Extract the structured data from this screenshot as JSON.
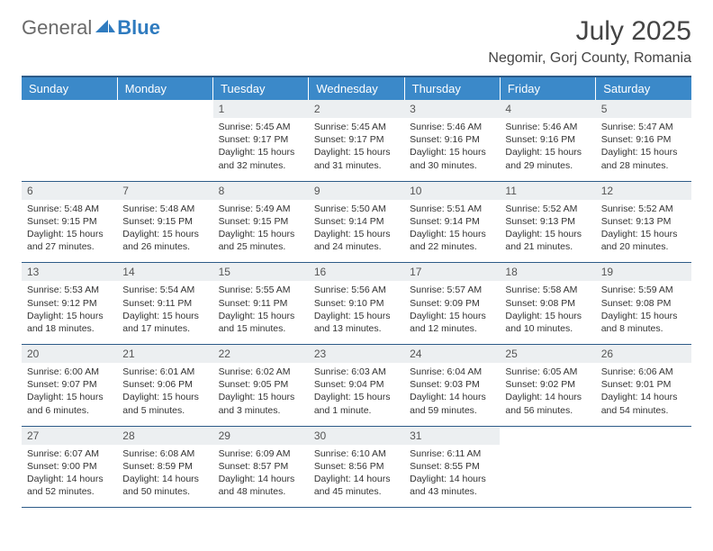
{
  "brand": {
    "general": "General",
    "blue": "Blue"
  },
  "title": "July 2025",
  "location": "Negomir, Gorj County, Romania",
  "colors": {
    "header_bg": "#3b89c9",
    "header_text": "#ffffff",
    "daynum_bg": "#eceff1",
    "border": "#2d5b88",
    "text": "#333333"
  },
  "weekdays": [
    "Sunday",
    "Monday",
    "Tuesday",
    "Wednesday",
    "Thursday",
    "Friday",
    "Saturday"
  ],
  "weeks": [
    [
      {
        "n": "",
        "sr": "",
        "ss": "",
        "dl": ""
      },
      {
        "n": "",
        "sr": "",
        "ss": "",
        "dl": ""
      },
      {
        "n": "1",
        "sr": "Sunrise: 5:45 AM",
        "ss": "Sunset: 9:17 PM",
        "dl": "Daylight: 15 hours and 32 minutes."
      },
      {
        "n": "2",
        "sr": "Sunrise: 5:45 AM",
        "ss": "Sunset: 9:17 PM",
        "dl": "Daylight: 15 hours and 31 minutes."
      },
      {
        "n": "3",
        "sr": "Sunrise: 5:46 AM",
        "ss": "Sunset: 9:16 PM",
        "dl": "Daylight: 15 hours and 30 minutes."
      },
      {
        "n": "4",
        "sr": "Sunrise: 5:46 AM",
        "ss": "Sunset: 9:16 PM",
        "dl": "Daylight: 15 hours and 29 minutes."
      },
      {
        "n": "5",
        "sr": "Sunrise: 5:47 AM",
        "ss": "Sunset: 9:16 PM",
        "dl": "Daylight: 15 hours and 28 minutes."
      }
    ],
    [
      {
        "n": "6",
        "sr": "Sunrise: 5:48 AM",
        "ss": "Sunset: 9:15 PM",
        "dl": "Daylight: 15 hours and 27 minutes."
      },
      {
        "n": "7",
        "sr": "Sunrise: 5:48 AM",
        "ss": "Sunset: 9:15 PM",
        "dl": "Daylight: 15 hours and 26 minutes."
      },
      {
        "n": "8",
        "sr": "Sunrise: 5:49 AM",
        "ss": "Sunset: 9:15 PM",
        "dl": "Daylight: 15 hours and 25 minutes."
      },
      {
        "n": "9",
        "sr": "Sunrise: 5:50 AM",
        "ss": "Sunset: 9:14 PM",
        "dl": "Daylight: 15 hours and 24 minutes."
      },
      {
        "n": "10",
        "sr": "Sunrise: 5:51 AM",
        "ss": "Sunset: 9:14 PM",
        "dl": "Daylight: 15 hours and 22 minutes."
      },
      {
        "n": "11",
        "sr": "Sunrise: 5:52 AM",
        "ss": "Sunset: 9:13 PM",
        "dl": "Daylight: 15 hours and 21 minutes."
      },
      {
        "n": "12",
        "sr": "Sunrise: 5:52 AM",
        "ss": "Sunset: 9:13 PM",
        "dl": "Daylight: 15 hours and 20 minutes."
      }
    ],
    [
      {
        "n": "13",
        "sr": "Sunrise: 5:53 AM",
        "ss": "Sunset: 9:12 PM",
        "dl": "Daylight: 15 hours and 18 minutes."
      },
      {
        "n": "14",
        "sr": "Sunrise: 5:54 AM",
        "ss": "Sunset: 9:11 PM",
        "dl": "Daylight: 15 hours and 17 minutes."
      },
      {
        "n": "15",
        "sr": "Sunrise: 5:55 AM",
        "ss": "Sunset: 9:11 PM",
        "dl": "Daylight: 15 hours and 15 minutes."
      },
      {
        "n": "16",
        "sr": "Sunrise: 5:56 AM",
        "ss": "Sunset: 9:10 PM",
        "dl": "Daylight: 15 hours and 13 minutes."
      },
      {
        "n": "17",
        "sr": "Sunrise: 5:57 AM",
        "ss": "Sunset: 9:09 PM",
        "dl": "Daylight: 15 hours and 12 minutes."
      },
      {
        "n": "18",
        "sr": "Sunrise: 5:58 AM",
        "ss": "Sunset: 9:08 PM",
        "dl": "Daylight: 15 hours and 10 minutes."
      },
      {
        "n": "19",
        "sr": "Sunrise: 5:59 AM",
        "ss": "Sunset: 9:08 PM",
        "dl": "Daylight: 15 hours and 8 minutes."
      }
    ],
    [
      {
        "n": "20",
        "sr": "Sunrise: 6:00 AM",
        "ss": "Sunset: 9:07 PM",
        "dl": "Daylight: 15 hours and 6 minutes."
      },
      {
        "n": "21",
        "sr": "Sunrise: 6:01 AM",
        "ss": "Sunset: 9:06 PM",
        "dl": "Daylight: 15 hours and 5 minutes."
      },
      {
        "n": "22",
        "sr": "Sunrise: 6:02 AM",
        "ss": "Sunset: 9:05 PM",
        "dl": "Daylight: 15 hours and 3 minutes."
      },
      {
        "n": "23",
        "sr": "Sunrise: 6:03 AM",
        "ss": "Sunset: 9:04 PM",
        "dl": "Daylight: 15 hours and 1 minute."
      },
      {
        "n": "24",
        "sr": "Sunrise: 6:04 AM",
        "ss": "Sunset: 9:03 PM",
        "dl": "Daylight: 14 hours and 59 minutes."
      },
      {
        "n": "25",
        "sr": "Sunrise: 6:05 AM",
        "ss": "Sunset: 9:02 PM",
        "dl": "Daylight: 14 hours and 56 minutes."
      },
      {
        "n": "26",
        "sr": "Sunrise: 6:06 AM",
        "ss": "Sunset: 9:01 PM",
        "dl": "Daylight: 14 hours and 54 minutes."
      }
    ],
    [
      {
        "n": "27",
        "sr": "Sunrise: 6:07 AM",
        "ss": "Sunset: 9:00 PM",
        "dl": "Daylight: 14 hours and 52 minutes."
      },
      {
        "n": "28",
        "sr": "Sunrise: 6:08 AM",
        "ss": "Sunset: 8:59 PM",
        "dl": "Daylight: 14 hours and 50 minutes."
      },
      {
        "n": "29",
        "sr": "Sunrise: 6:09 AM",
        "ss": "Sunset: 8:57 PM",
        "dl": "Daylight: 14 hours and 48 minutes."
      },
      {
        "n": "30",
        "sr": "Sunrise: 6:10 AM",
        "ss": "Sunset: 8:56 PM",
        "dl": "Daylight: 14 hours and 45 minutes."
      },
      {
        "n": "31",
        "sr": "Sunrise: 6:11 AM",
        "ss": "Sunset: 8:55 PM",
        "dl": "Daylight: 14 hours and 43 minutes."
      },
      {
        "n": "",
        "sr": "",
        "ss": "",
        "dl": ""
      },
      {
        "n": "",
        "sr": "",
        "ss": "",
        "dl": ""
      }
    ]
  ]
}
